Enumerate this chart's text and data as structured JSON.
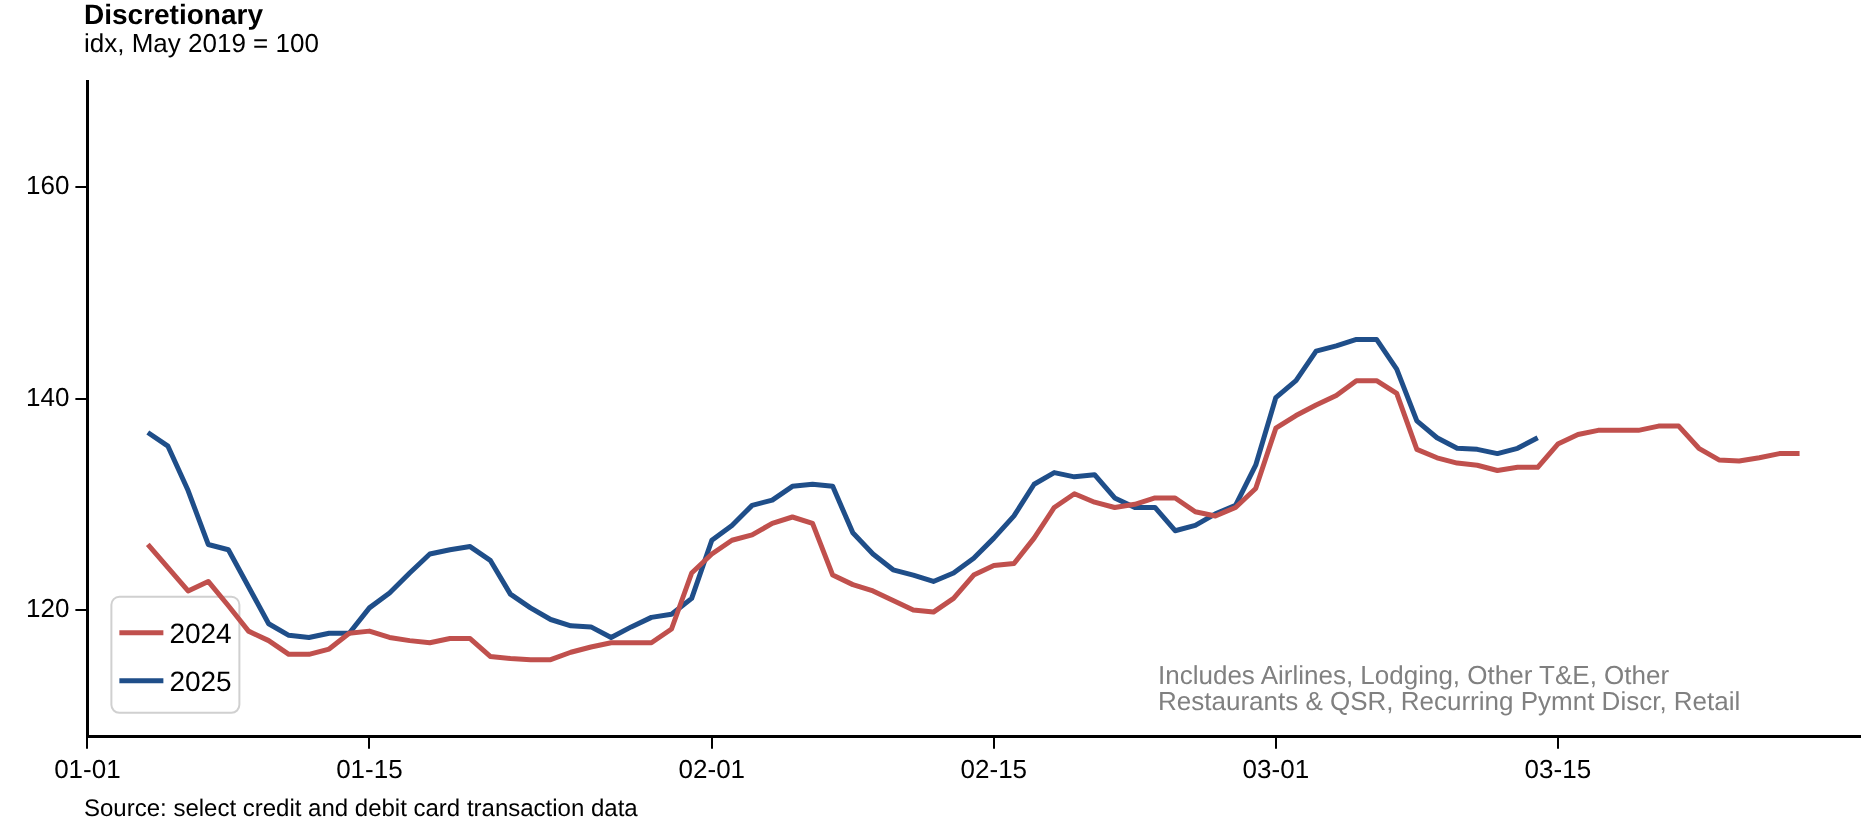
{
  "chart_data": {
    "type": "line",
    "title": "Discretionary",
    "subtitle": "idx, May 2019 = 100",
    "annotations": [
      "Includes Airlines, Lodging, Other T&E, Other Restaurants & QSR, Recurring Pymnt Discr, Retail",
      "Source: select credit and debit card transaction data"
    ],
    "x": [
      "--01-04",
      "--01-05",
      "--01-06",
      "--01-07",
      "--01-08",
      "--01-09",
      "--01-10",
      "--01-11",
      "--01-12",
      "--01-13",
      "--01-14",
      "--01-15",
      "--01-16",
      "--01-17",
      "--01-18",
      "--01-19",
      "--01-20",
      "--01-21",
      "--01-22",
      "--01-23",
      "--01-24",
      "--01-25",
      "--01-26",
      "--01-27",
      "--01-28",
      "--01-29",
      "--01-30",
      "--01-31",
      "--02-01",
      "--02-02",
      "--02-03",
      "--02-04",
      "--02-05",
      "--02-06",
      "--02-07",
      "--02-08",
      "--02-09",
      "--02-10",
      "--02-11",
      "--02-12",
      "--02-13",
      "--02-14",
      "--02-15",
      "--02-16",
      "--02-17",
      "--02-18",
      "--02-19",
      "--02-20",
      "--02-21",
      "--02-22",
      "--02-23",
      "--02-24",
      "--02-25",
      "--02-26",
      "--02-27",
      "--02-28",
      "--03-01",
      "--03-02",
      "--03-03",
      "--03-04",
      "--03-05",
      "--03-06",
      "--03-07",
      "--03-08",
      "--03-09",
      "--03-10",
      "--03-11",
      "--03-12",
      "--03-13",
      "--03-14",
      "--03-15",
      "--03-16",
      "--03-17",
      "--03-18",
      "--03-19",
      "--03-20",
      "--03-21",
      "--03-22",
      "--03-23",
      "--03-24",
      "--03-25",
      "--03-26",
      "--03-27"
    ],
    "series": [
      {
        "name": "2024",
        "color": "#c0504d",
        "values": [
          126.2,
          124.0,
          121.8,
          122.7,
          120.4,
          118.0,
          117.1,
          115.8,
          115.8,
          116.3,
          117.8,
          118.0,
          117.4,
          117.1,
          116.9,
          117.3,
          117.3,
          115.6,
          115.4,
          115.3,
          115.3,
          116.0,
          116.5,
          116.9,
          116.9,
          116.9,
          118.2,
          123.5,
          125.3,
          126.6,
          127.1,
          128.2,
          128.8,
          128.2,
          123.3,
          122.4,
          121.8,
          120.9,
          120.0,
          119.8,
          121.1,
          123.3,
          124.2,
          124.4,
          126.8,
          129.7,
          131.0,
          130.2,
          129.7,
          130.0,
          130.6,
          130.6,
          129.3,
          128.9,
          129.7,
          131.5,
          137.2,
          138.4,
          139.4,
          140.3,
          141.7,
          141.7,
          140.5,
          135.2,
          134.4,
          133.9,
          133.7,
          133.2,
          133.5,
          133.5,
          135.7,
          136.6,
          137.0,
          137.0,
          137.0,
          137.4,
          137.4,
          135.3,
          134.2,
          134.1,
          134.4,
          134.8,
          134.8
        ]
      },
      {
        "name": "2025",
        "color": "#1f4e89",
        "values": [
          136.8,
          135.5,
          131.3,
          126.2,
          125.7,
          122.2,
          118.7,
          117.6,
          117.4,
          117.8,
          117.8,
          120.2,
          121.6,
          123.5,
          125.3,
          125.7,
          126.0,
          124.7,
          121.5,
          120.2,
          119.1,
          118.5,
          118.4,
          117.4,
          118.4,
          119.3,
          119.6,
          121.1,
          126.6,
          128.0,
          129.9,
          130.4,
          131.7,
          131.9,
          131.7,
          127.3,
          125.3,
          123.8,
          123.3,
          122.7,
          123.5,
          124.9,
          126.8,
          128.9,
          131.9,
          133.0,
          132.6,
          132.8,
          130.6,
          129.7,
          129.7,
          127.5,
          128.0,
          129.1,
          129.9,
          133.7,
          140.1,
          141.7,
          144.5,
          145.0,
          145.6,
          145.6,
          142.8,
          137.9,
          136.3,
          135.3,
          135.2,
          134.8,
          135.3,
          136.3,
          null,
          null,
          null,
          null,
          null,
          null,
          null,
          null,
          null,
          null,
          null,
          null,
          null
        ]
      }
    ],
    "xlim": [
      "--01-01",
      "--03-30"
    ],
    "xticks": [
      {
        "value": "--01-01",
        "label": "01-01"
      },
      {
        "value": "--01-15",
        "label": "01-15"
      },
      {
        "value": "--02-01",
        "label": "02-01"
      },
      {
        "value": "--02-15",
        "label": "02-15"
      },
      {
        "value": "--03-01",
        "label": "03-01"
      },
      {
        "value": "--03-15",
        "label": "03-15"
      }
    ],
    "ylim": [
      108,
      170
    ],
    "yticks": [
      120,
      140,
      160
    ],
    "grid": false,
    "legend": "bottom left"
  }
}
